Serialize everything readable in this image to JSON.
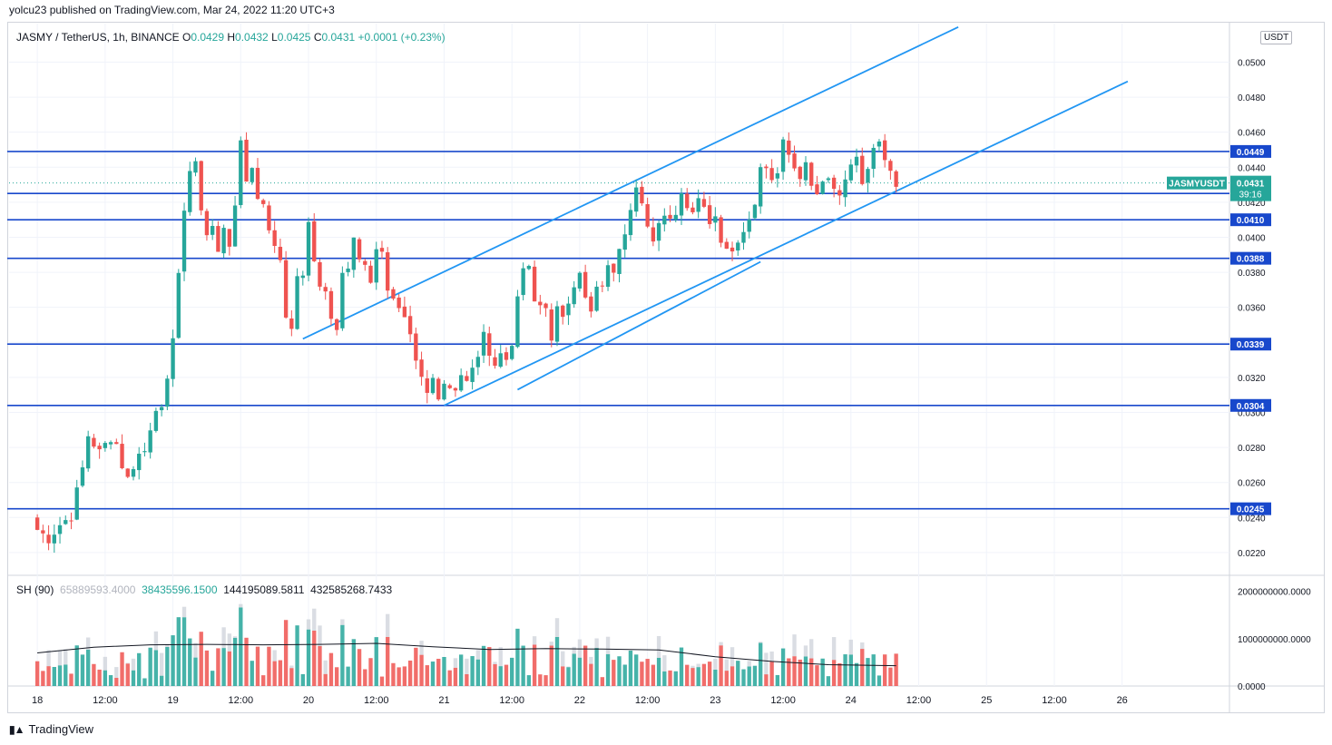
{
  "header": {
    "publisher": "yolcu23 published on TradingView.com, Mar 24, 2022 11:20 UTC+3"
  },
  "legend": {
    "symbol": "JASMY / TetherUS, 1h, BINANCE",
    "o_label": "O",
    "o": "0.0429",
    "h_label": "H",
    "h": "0.0432",
    "l_label": "L",
    "l": "0.0425",
    "c_label": "C",
    "c": "0.0431",
    "change": "+0.0001 (+0.23%)"
  },
  "indicator_legend": {
    "name": "SH (90)",
    "v1": "65889593.4000",
    "v2": "38435596.1500",
    "v3": "144195089.5811",
    "v4": "432585268.7433"
  },
  "currency_tag": "USDT",
  "brand": "TradingView",
  "colors": {
    "up": "#26a69a",
    "down": "#ef5350",
    "level": "#1848cc",
    "channel": "#2196f3",
    "grid": "#f0f3fa"
  },
  "chart_data": {
    "type": "candlestick",
    "title": "JASMY / TetherUS, 1h, BINANCE",
    "ylim": [
      0.0207,
      0.0522
    ],
    "y_ticks": [
      "0.0500",
      "0.0480",
      "0.0460",
      "0.0440",
      "0.0420",
      "0.0400",
      "0.0380",
      "0.0360",
      "0.0340",
      "0.0320",
      "0.0300",
      "0.0280",
      "0.0260",
      "0.0240",
      "0.0220"
    ],
    "x_range_hours": [
      -5,
      211
    ],
    "x_ticks": [
      {
        "h": 0,
        "label": "18"
      },
      {
        "h": 12,
        "label": "12:00"
      },
      {
        "h": 24,
        "label": "19"
      },
      {
        "h": 36,
        "label": "12:00"
      },
      {
        "h": 48,
        "label": "20"
      },
      {
        "h": 60,
        "label": "12:00"
      },
      {
        "h": 72,
        "label": "21"
      },
      {
        "h": 84,
        "label": "12:00"
      },
      {
        "h": 96,
        "label": "22"
      },
      {
        "h": 108,
        "label": "12:00"
      },
      {
        "h": 120,
        "label": "23"
      },
      {
        "h": 132,
        "label": "12:00"
      },
      {
        "h": 144,
        "label": "24"
      },
      {
        "h": 156,
        "label": "12:00"
      },
      {
        "h": 168,
        "label": "25"
      },
      {
        "h": 180,
        "label": "12:00"
      },
      {
        "h": 192,
        "label": "26"
      }
    ],
    "horizontal_levels": [
      0.0449,
      0.0425,
      0.041,
      0.0388,
      0.0339,
      0.0304,
      0.0245
    ],
    "last_price": {
      "label": "JASMYUSDT",
      "value": "0.0431",
      "countdown": "39:16"
    },
    "channel_lines": [
      {
        "from": {
          "h": 72,
          "y": 0.0304
        },
        "to": {
          "h": 193,
          "y": 0.0489
        }
      },
      {
        "from": {
          "h": 47,
          "y": 0.0342
        },
        "to": {
          "h": 163,
          "y": 0.052
        }
      },
      {
        "from": {
          "h": 85,
          "y": 0.0313
        },
        "to": {
          "h": 128,
          "y": 0.0386
        }
      }
    ],
    "close_anchors": [
      [
        0,
        0.0233
      ],
      [
        2,
        0.0228
      ],
      [
        4,
        0.0236
      ],
      [
        6,
        0.0241
      ],
      [
        8,
        0.0268
      ],
      [
        9,
        0.0287
      ],
      [
        11,
        0.0277
      ],
      [
        13,
        0.0286
      ],
      [
        14,
        0.0282
      ],
      [
        15,
        0.027
      ],
      [
        16,
        0.0262
      ],
      [
        17,
        0.027
      ],
      [
        18,
        0.0276
      ],
      [
        19,
        0.0278
      ],
      [
        20,
        0.0292
      ],
      [
        21,
        0.0304
      ],
      [
        22,
        0.03
      ],
      [
        23,
        0.0316
      ],
      [
        24,
        0.0345
      ],
      [
        25,
        0.038
      ],
      [
        26,
        0.0412
      ],
      [
        27,
        0.044
      ],
      [
        28,
        0.0444
      ],
      [
        29,
        0.0415
      ],
      [
        30,
        0.04
      ],
      [
        31,
        0.0408
      ],
      [
        32,
        0.0394
      ],
      [
        33,
        0.0402
      ],
      [
        34,
        0.0395
      ],
      [
        35,
        0.042
      ],
      [
        36,
        0.0455
      ],
      [
        37,
        0.0433
      ],
      [
        38,
        0.0442
      ],
      [
        39,
        0.042
      ],
      [
        40,
        0.042
      ],
      [
        41,
        0.0405
      ],
      [
        42,
        0.0398
      ],
      [
        43,
        0.0384
      ],
      [
        44,
        0.0356
      ],
      [
        45,
        0.0345
      ],
      [
        46,
        0.0378
      ],
      [
        47,
        0.038
      ],
      [
        48,
        0.0408
      ],
      [
        49,
        0.0387
      ],
      [
        50,
        0.037
      ],
      [
        51,
        0.0368
      ],
      [
        52,
        0.0356
      ],
      [
        53,
        0.0349
      ],
      [
        54,
        0.038
      ],
      [
        55,
        0.0385
      ],
      [
        56,
        0.0403
      ],
      [
        57,
        0.0388
      ],
      [
        58,
        0.0383
      ],
      [
        59,
        0.0373
      ],
      [
        60,
        0.039
      ],
      [
        61,
        0.0393
      ],
      [
        62,
        0.037
      ],
      [
        63,
        0.0365
      ],
      [
        64,
        0.036
      ],
      [
        65,
        0.0352
      ],
      [
        66,
        0.0345
      ],
      [
        67,
        0.033
      ],
      [
        68,
        0.0322
      ],
      [
        69,
        0.0313
      ],
      [
        70,
        0.0318
      ],
      [
        71,
        0.031
      ],
      [
        72,
        0.0318
      ],
      [
        73,
        0.0312
      ],
      [
        74,
        0.031
      ],
      [
        75,
        0.0318
      ],
      [
        76,
        0.0315
      ],
      [
        77,
        0.0323
      ],
      [
        78,
        0.033
      ],
      [
        79,
        0.0345
      ],
      [
        80,
        0.0332
      ],
      [
        81,
        0.033
      ],
      [
        82,
        0.0335
      ],
      [
        83,
        0.0331
      ],
      [
        84,
        0.034
      ],
      [
        85,
        0.0367
      ],
      [
        86,
        0.0381
      ],
      [
        87,
        0.0382
      ],
      [
        88,
        0.0365
      ],
      [
        89,
        0.0358
      ],
      [
        90,
        0.0363
      ],
      [
        91,
        0.0342
      ],
      [
        92,
        0.036
      ],
      [
        93,
        0.0355
      ],
      [
        94,
        0.0365
      ],
      [
        95,
        0.0368
      ],
      [
        96,
        0.038
      ],
      [
        97,
        0.0363
      ],
      [
        98,
        0.0357
      ],
      [
        99,
        0.0372
      ],
      [
        100,
        0.0375
      ],
      [
        101,
        0.0382
      ],
      [
        102,
        0.0377
      ],
      [
        103,
        0.0395
      ],
      [
        104,
        0.0405
      ],
      [
        105,
        0.0418
      ],
      [
        106,
        0.0427
      ],
      [
        107,
        0.0418
      ],
      [
        108,
        0.0405
      ],
      [
        109,
        0.0395
      ],
      [
        110,
        0.041
      ],
      [
        111,
        0.041
      ],
      [
        112,
        0.0413
      ],
      [
        113,
        0.0416
      ],
      [
        114,
        0.0428
      ],
      [
        115,
        0.042
      ],
      [
        116,
        0.0414
      ],
      [
        117,
        0.042
      ],
      [
        118,
        0.0415
      ],
      [
        119,
        0.041
      ],
      [
        120,
        0.0412
      ],
      [
        121,
        0.04
      ],
      [
        122,
        0.0395
      ],
      [
        123,
        0.0392
      ],
      [
        124,
        0.04
      ],
      [
        125,
        0.0404
      ],
      [
        126,
        0.0412
      ],
      [
        127,
        0.042
      ],
      [
        128,
        0.0438
      ],
      [
        129,
        0.0442
      ],
      [
        130,
        0.0435
      ],
      [
        131,
        0.044
      ],
      [
        132,
        0.0455
      ],
      [
        133,
        0.045
      ],
      [
        134,
        0.044
      ],
      [
        135,
        0.0436
      ],
      [
        136,
        0.0443
      ],
      [
        137,
        0.043
      ],
      [
        138,
        0.0428
      ],
      [
        139,
        0.043
      ],
      [
        140,
        0.0434
      ],
      [
        141,
        0.0426
      ],
      [
        142,
        0.0425
      ],
      [
        143,
        0.043
      ],
      [
        144,
        0.044
      ],
      [
        145,
        0.0445
      ],
      [
        146,
        0.0432
      ],
      [
        147,
        0.044
      ],
      [
        148,
        0.0454
      ],
      [
        149,
        0.0452
      ],
      [
        150,
        0.0447
      ],
      [
        151,
        0.0441
      ],
      [
        152,
        0.0431
      ]
    ],
    "volume_ylim": [
      0,
      2300000000
    ],
    "volume_ticks": [
      "2000000000.0000",
      "1000000000.0000",
      "0.0000"
    ],
    "volume_ma_anchors": [
      [
        0,
        700000000
      ],
      [
        10,
        820000000
      ],
      [
        20,
        870000000
      ],
      [
        30,
        880000000
      ],
      [
        40,
        870000000
      ],
      [
        50,
        880000000
      ],
      [
        60,
        900000000
      ],
      [
        70,
        830000000
      ],
      [
        80,
        770000000
      ],
      [
        90,
        790000000
      ],
      [
        100,
        780000000
      ],
      [
        110,
        760000000
      ],
      [
        120,
        620000000
      ],
      [
        130,
        520000000
      ],
      [
        140,
        450000000
      ],
      [
        152,
        430000000
      ]
    ]
  }
}
